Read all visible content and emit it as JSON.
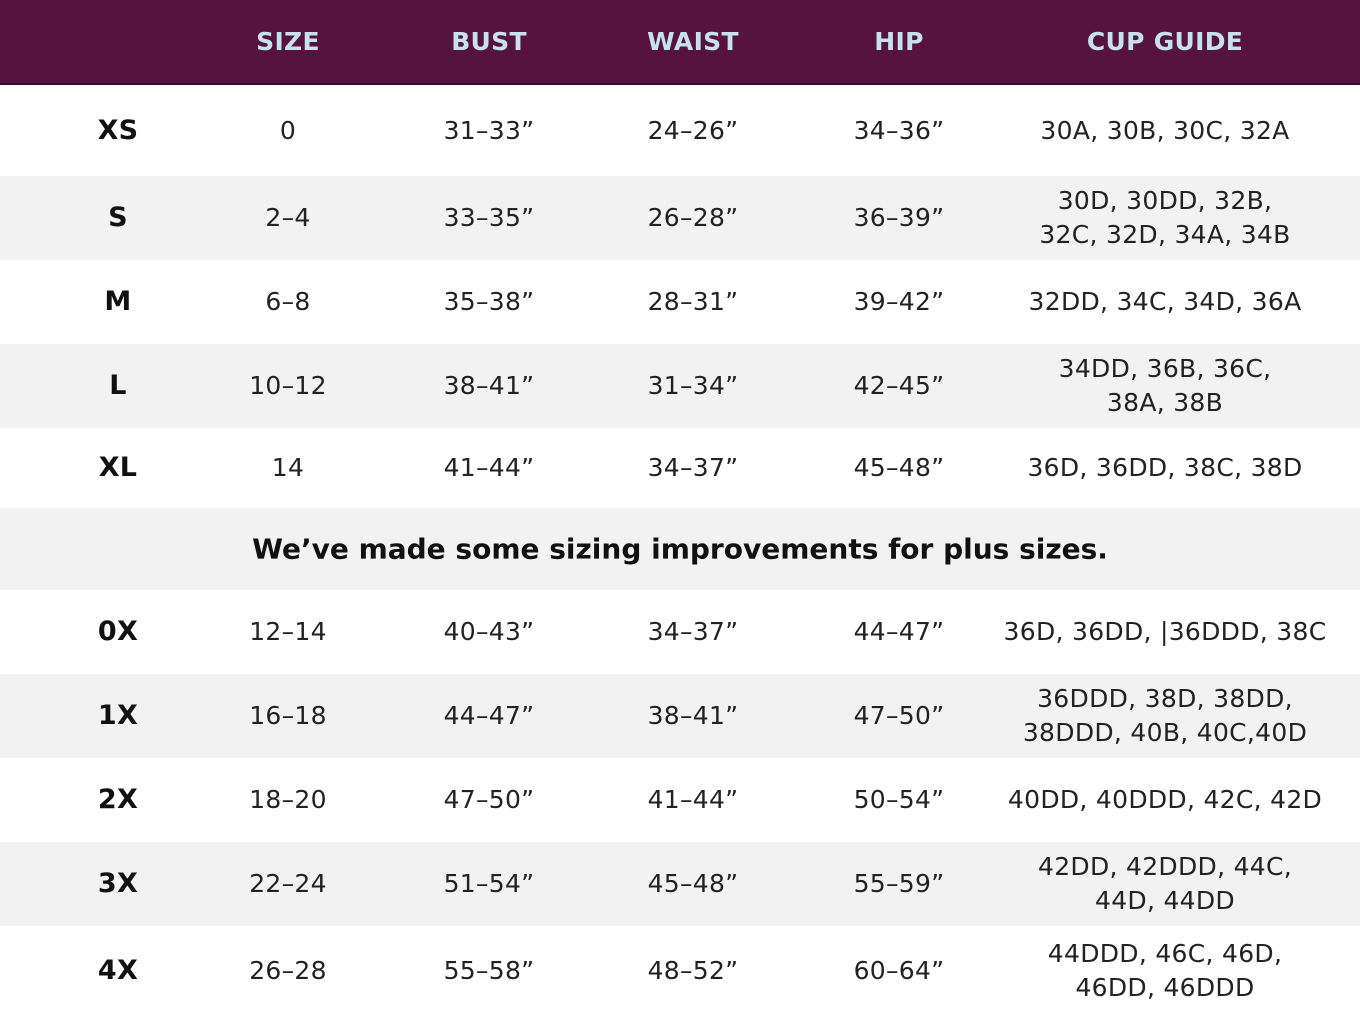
{
  "header": [
    "",
    "SIZE",
    "BUST",
    "WAIST",
    "HIP",
    "CUP GUIDE"
  ],
  "colors": {
    "header_bg": "#561342",
    "header_text": "#c7e2ef",
    "alt_row": "#f2f2f2"
  },
  "rows_top": [
    {
      "label": "XS",
      "size": "0",
      "bust": "31–33”",
      "waist": "24–26”",
      "hip": "34–36”",
      "cup": [
        "30A, 30B, 30C, 32A"
      ]
    },
    {
      "label": "S",
      "size": "2–4",
      "bust": "33–35”",
      "waist": "26–28”",
      "hip": "36–39”",
      "cup": [
        "30D, 30DD, 32B,",
        "32C, 32D, 34A, 34B"
      ]
    },
    {
      "label": "M",
      "size": "6–8",
      "bust": "35–38”",
      "waist": "28–31”",
      "hip": "39–42”",
      "cup": [
        "32DD, 34C, 34D, 36A"
      ]
    },
    {
      "label": "L",
      "size": "10–12",
      "bust": "38–41”",
      "waist": "31–34”",
      "hip": "42–45”",
      "cup": [
        "34DD, 36B, 36C,",
        "38A, 38B"
      ]
    },
    {
      "label": "XL",
      "size": "14",
      "bust": "41–44”",
      "waist": "34–37”",
      "hip": "45–48”",
      "cup": [
        "36D, 36DD, 38C, 38D"
      ]
    }
  ],
  "note": "We’ve made some sizing improvements for plus sizes.",
  "rows_bottom": [
    {
      "label": "0X",
      "size": "12–14",
      "bust": "40–43”",
      "waist": "34–37”",
      "hip": "44–47”",
      "cup": [
        "36D, 36DD, |36DDD, 38C"
      ]
    },
    {
      "label": "1X",
      "size": "16–18",
      "bust": "44–47”",
      "waist": "38–41”",
      "hip": "47–50”",
      "cup": [
        "36DDD, 38D, 38DD,",
        "38DDD, 40B, 40C,40D"
      ]
    },
    {
      "label": "2X",
      "size": "18–20",
      "bust": "47–50”",
      "waist": "41–44”",
      "hip": "50–54”",
      "cup": [
        "40DD, 40DDD, 42C, 42D"
      ]
    },
    {
      "label": "3X",
      "size": "22–24",
      "bust": "51–54”",
      "waist": "45–48”",
      "hip": "55–59”",
      "cup": [
        "42DD, 42DDD, 44C,",
        "44D, 44DD"
      ]
    },
    {
      "label": "4X",
      "size": "26–28",
      "bust": "55–58”",
      "waist": "48–52”",
      "hip": "60–64”",
      "cup": [
        "44DDD, 46C, 46D,",
        "46DD, 46DDD"
      ]
    }
  ]
}
